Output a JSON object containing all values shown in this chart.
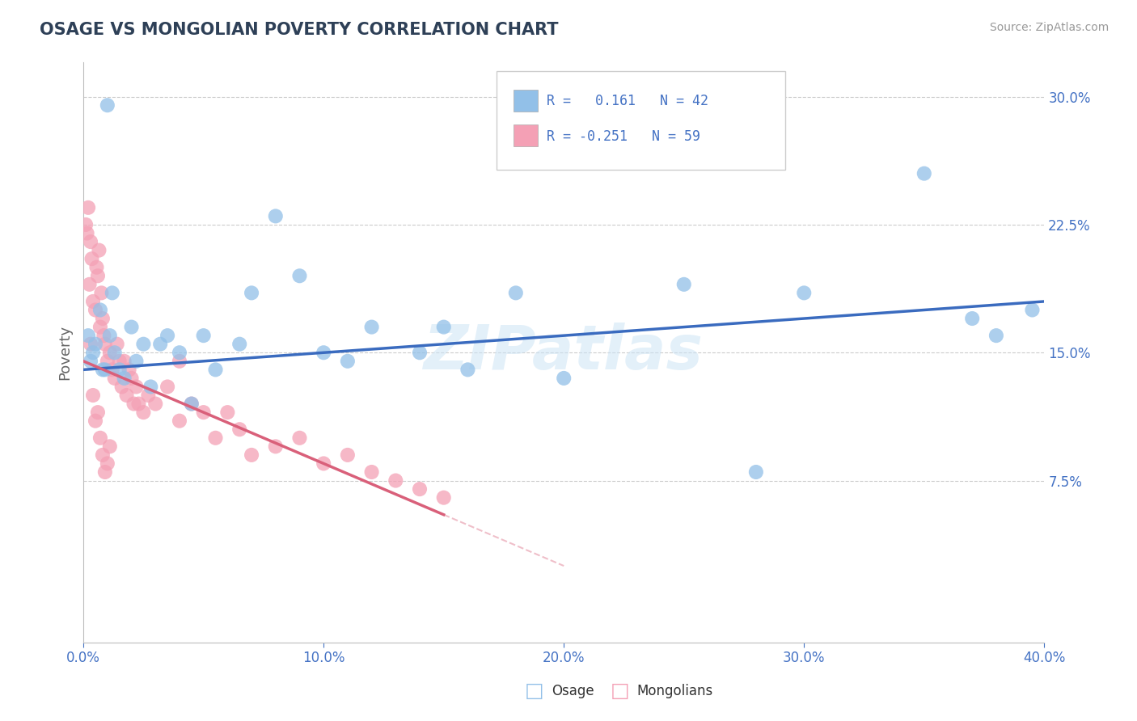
{
  "title": "OSAGE VS MONGOLIAN POVERTY CORRELATION CHART",
  "source": "Source: ZipAtlas.com",
  "ylabel": "Poverty",
  "x_min": 0.0,
  "x_max": 40.0,
  "y_min": -2.0,
  "y_max": 32.0,
  "right_yticks": [
    7.5,
    15.0,
    22.5,
    30.0
  ],
  "grid_color": "#cccccc",
  "watermark": "ZIPatlas",
  "blue_color": "#92C0E8",
  "pink_color": "#F4A0B5",
  "blue_line_color": "#3A6BBF",
  "pink_line_color": "#D9607A",
  "title_color": "#2E4057",
  "axis_label_color": "#4472C4",
  "osage_label": "Osage",
  "mongolian_label": "Mongolians",
  "xtick_labels": [
    "0.0%",
    "10.0%",
    "20.0%",
    "30.0%",
    "40.0%"
  ],
  "xtick_positions": [
    0.0,
    10.0,
    20.0,
    30.0,
    40.0
  ],
  "osage_x": [
    0.3,
    0.5,
    0.7,
    0.9,
    1.1,
    1.3,
    1.5,
    1.7,
    2.0,
    2.2,
    2.5,
    2.8,
    3.2,
    3.5,
    4.0,
    4.5,
    5.0,
    5.5,
    6.5,
    7.0,
    8.0,
    9.0,
    10.0,
    11.0,
    12.0,
    14.0,
    15.0,
    16.0,
    18.0,
    20.0,
    25.0,
    28.0,
    30.0,
    35.0,
    37.0,
    38.0,
    39.5,
    0.2,
    0.4,
    0.8,
    1.0,
    1.2
  ],
  "osage_y": [
    14.5,
    15.5,
    17.5,
    14.0,
    16.0,
    15.0,
    14.0,
    13.5,
    16.5,
    14.5,
    15.5,
    13.0,
    15.5,
    16.0,
    15.0,
    12.0,
    16.0,
    14.0,
    15.5,
    18.5,
    23.0,
    19.5,
    15.0,
    14.5,
    16.5,
    15.0,
    16.5,
    14.0,
    18.5,
    13.5,
    19.0,
    8.0,
    18.5,
    25.5,
    17.0,
    16.0,
    17.5,
    16.0,
    15.0,
    14.0,
    29.5,
    18.5
  ],
  "mongolian_x": [
    0.1,
    0.15,
    0.2,
    0.25,
    0.3,
    0.35,
    0.4,
    0.5,
    0.55,
    0.6,
    0.65,
    0.7,
    0.75,
    0.8,
    0.85,
    0.9,
    1.0,
    1.1,
    1.2,
    1.3,
    1.4,
    1.5,
    1.6,
    1.7,
    1.8,
    1.9,
    2.0,
    2.1,
    2.2,
    2.3,
    2.5,
    2.7,
    3.0,
    3.5,
    4.0,
    4.5,
    5.0,
    5.5,
    6.0,
    6.5,
    7.0,
    8.0,
    9.0,
    10.0,
    11.0,
    12.0,
    13.0,
    14.0,
    15.0,
    0.3,
    0.4,
    0.5,
    0.6,
    0.7,
    0.8,
    0.9,
    1.0,
    1.1,
    4.0
  ],
  "mongolian_y": [
    22.5,
    22.0,
    23.5,
    19.0,
    21.5,
    20.5,
    18.0,
    17.5,
    20.0,
    19.5,
    21.0,
    16.5,
    18.5,
    17.0,
    16.0,
    15.5,
    14.5,
    15.0,
    14.0,
    13.5,
    15.5,
    14.5,
    13.0,
    14.5,
    12.5,
    14.0,
    13.5,
    12.0,
    13.0,
    12.0,
    11.5,
    12.5,
    12.0,
    13.0,
    11.0,
    12.0,
    11.5,
    10.0,
    11.5,
    10.5,
    9.0,
    9.5,
    10.0,
    8.5,
    9.0,
    8.0,
    7.5,
    7.0,
    6.5,
    15.5,
    12.5,
    11.0,
    11.5,
    10.0,
    9.0,
    8.0,
    8.5,
    9.5,
    14.5
  ],
  "blue_trend_x0": 0.0,
  "blue_trend_x1": 40.0,
  "blue_trend_y0": 14.0,
  "blue_trend_y1": 18.0,
  "pink_trend_x0": 0.0,
  "pink_trend_x1": 15.0,
  "pink_trend_y0": 14.5,
  "pink_trend_y1": 5.5,
  "pink_dash_x0": 15.0,
  "pink_dash_x1": 20.0,
  "pink_dash_y0": 5.5,
  "pink_dash_y1": 2.5
}
